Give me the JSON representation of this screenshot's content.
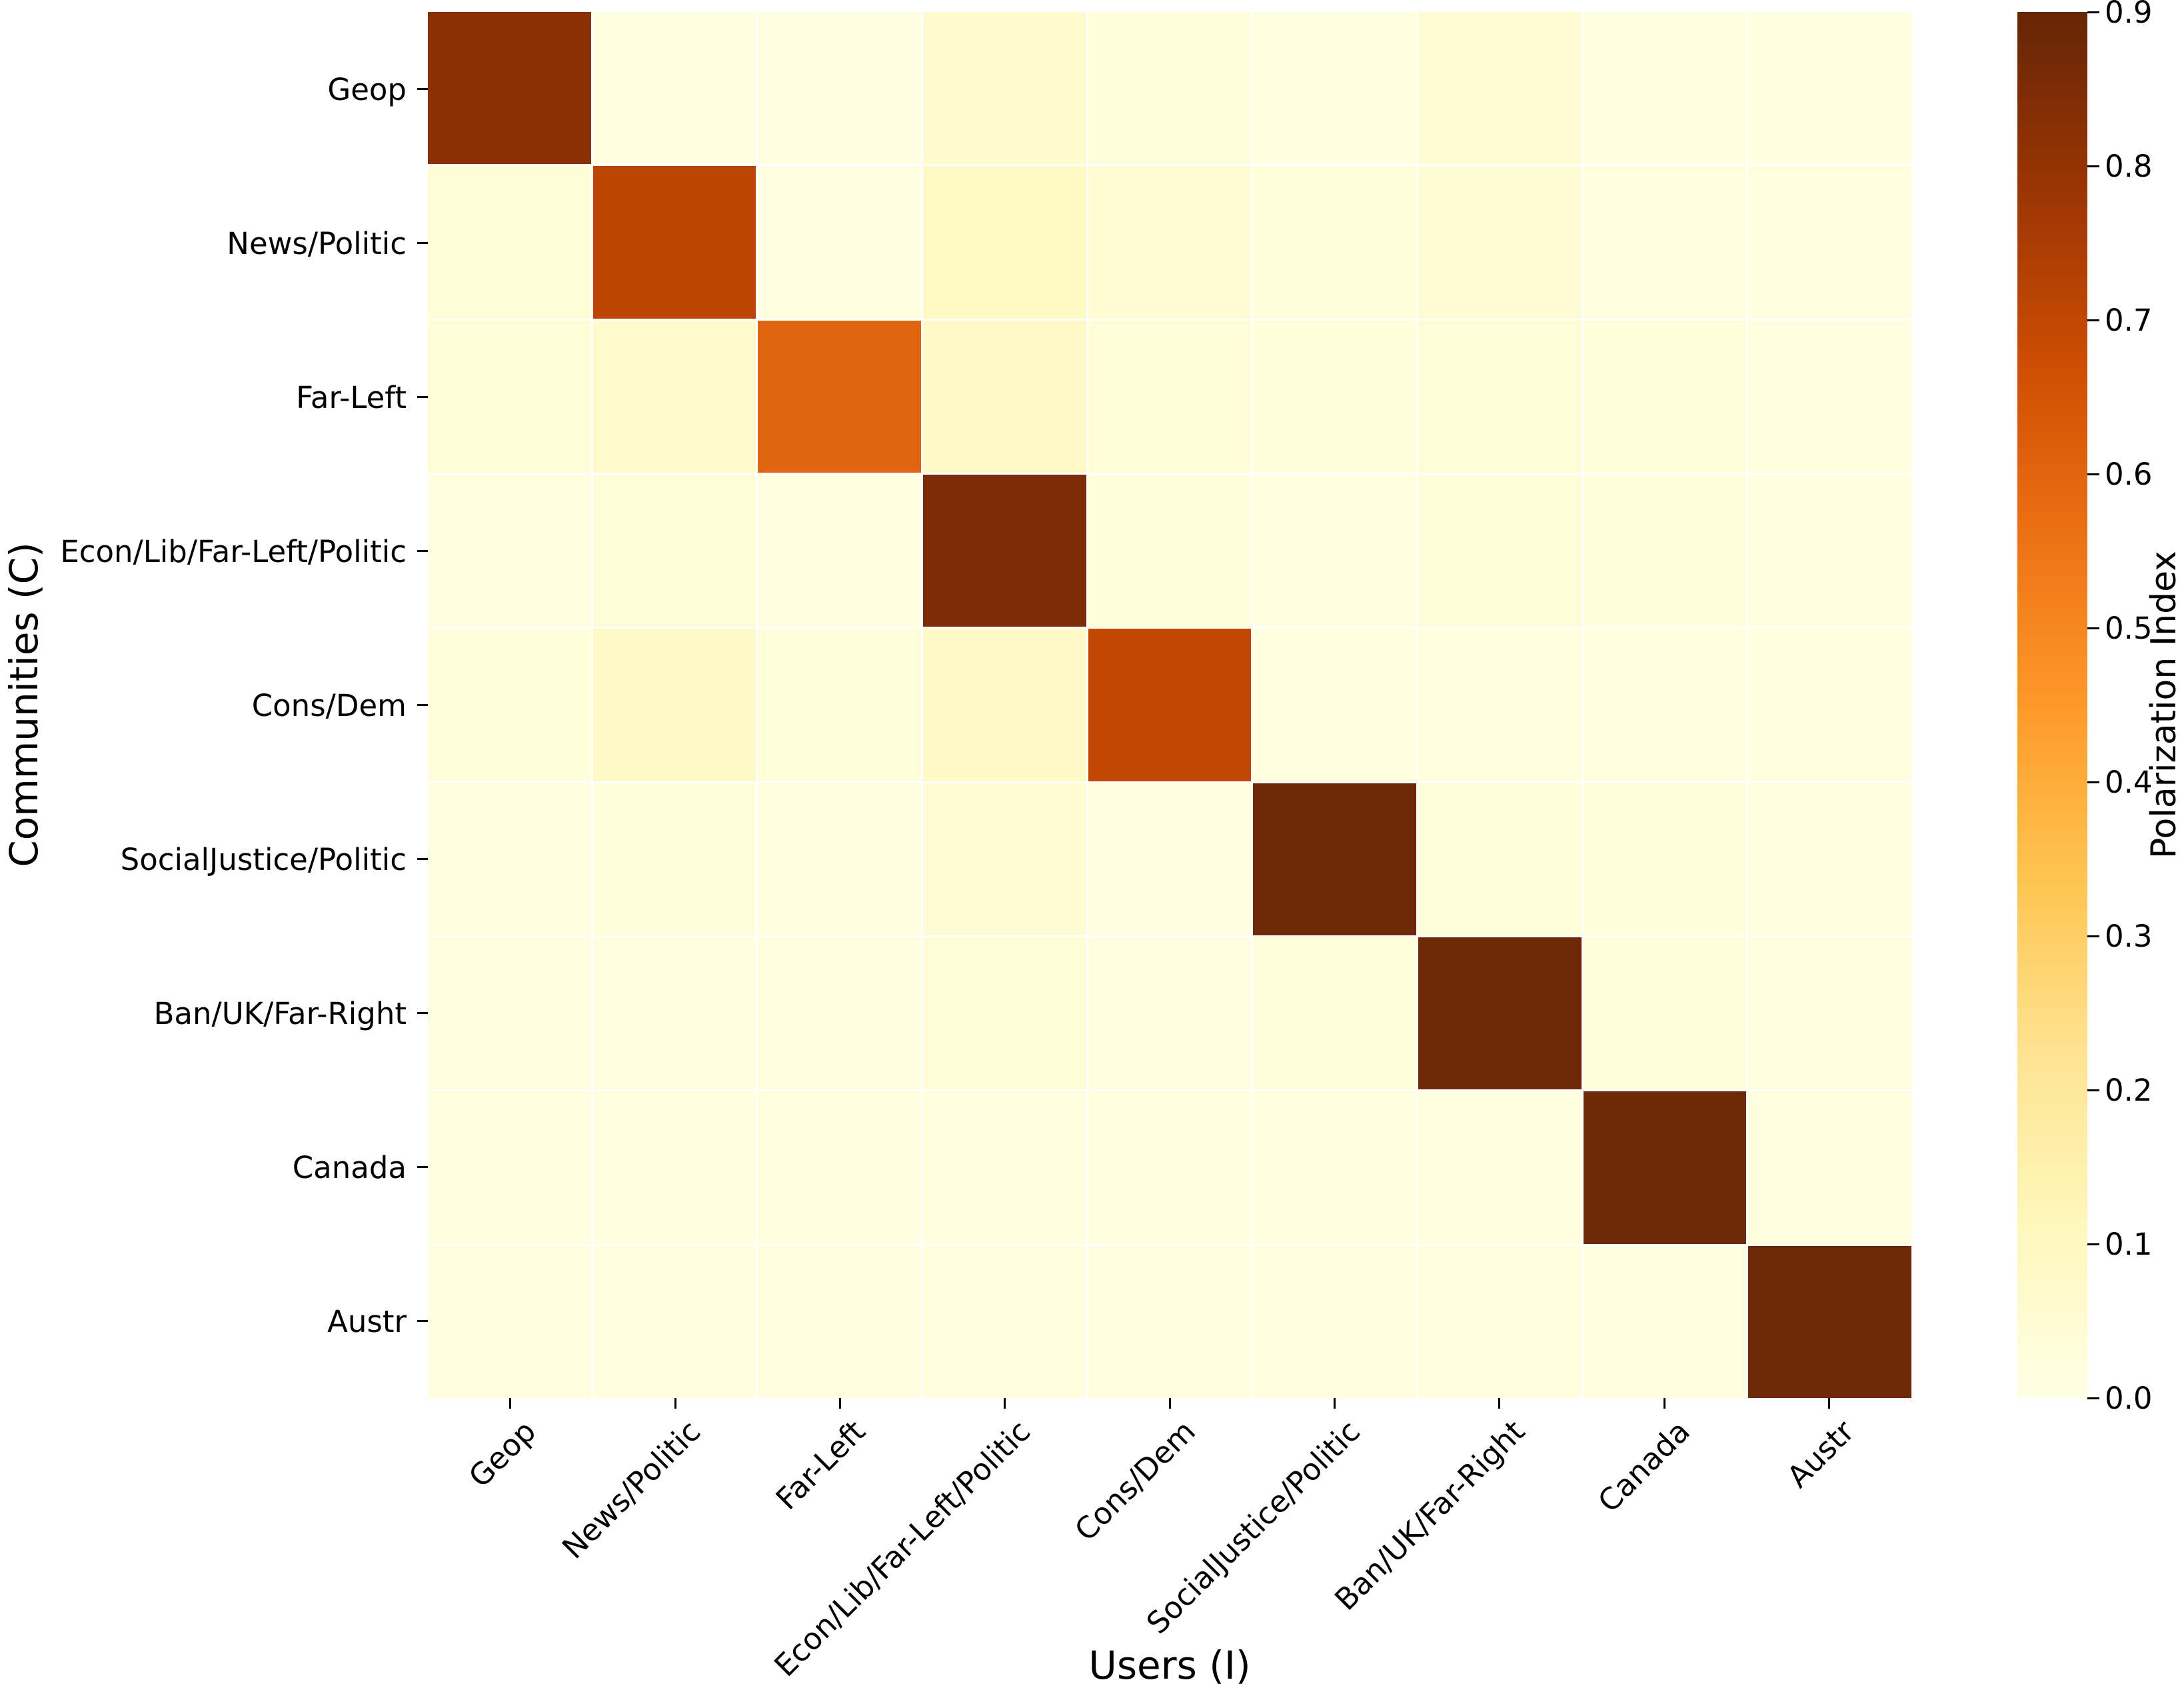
{
  "chart_data": {
    "type": "heatmap",
    "xlabel": "Users (I)",
    "ylabel": "Communities (C)",
    "colorbar_label": "Polarization Index",
    "categories": [
      "Geop",
      "News/Politic",
      "Far-Left",
      "Econ/Lib/Far-Left/Politic",
      "Cons/Dem",
      "SocialJustice/Politic",
      "Ban/UK/Far-Right",
      "Canada",
      "Austr"
    ],
    "matrix": [
      [
        0.82,
        0.02,
        0.01,
        0.06,
        0.03,
        0.02,
        0.05,
        0.02,
        0.02
      ],
      [
        0.04,
        0.71,
        0.01,
        0.09,
        0.05,
        0.03,
        0.05,
        0.02,
        0.02
      ],
      [
        0.04,
        0.07,
        0.6,
        0.08,
        0.04,
        0.03,
        0.04,
        0.03,
        0.02
      ],
      [
        0.02,
        0.04,
        0.02,
        0.85,
        0.03,
        0.02,
        0.04,
        0.03,
        0.02
      ],
      [
        0.03,
        0.08,
        0.03,
        0.08,
        0.7,
        0.02,
        0.02,
        0.02,
        0.02
      ],
      [
        0.02,
        0.03,
        0.02,
        0.05,
        0.01,
        0.88,
        0.03,
        0.03,
        0.02
      ],
      [
        0.02,
        0.02,
        0.02,
        0.04,
        0.02,
        0.03,
        0.88,
        0.03,
        0.02
      ],
      [
        0.02,
        0.02,
        0.02,
        0.02,
        0.02,
        0.02,
        0.02,
        0.88,
        0.02
      ],
      [
        0.02,
        0.02,
        0.02,
        0.02,
        0.02,
        0.02,
        0.02,
        0.02,
        0.88
      ]
    ],
    "vmin": 0.0,
    "vmax": 0.9,
    "colorbar_ticks": [
      "0.0",
      "0.1",
      "0.2",
      "0.3",
      "0.4",
      "0.5",
      "0.6",
      "0.7",
      "0.8",
      "0.9"
    ],
    "colormap": {
      "name": "YlOrBr",
      "stops": [
        "#FFFFE5",
        "#FFF7BC",
        "#FEE391",
        "#FEC44F",
        "#FE9929",
        "#EC7014",
        "#CC4C02",
        "#993404",
        "#662506"
      ]
    },
    "gridline_color": "#FFFFFF",
    "tick_color": "#000000",
    "background_color": "#FFFFFF",
    "legend_position": "right-colorbar",
    "x_tick_rotation_deg": 45,
    "grid": false
  }
}
